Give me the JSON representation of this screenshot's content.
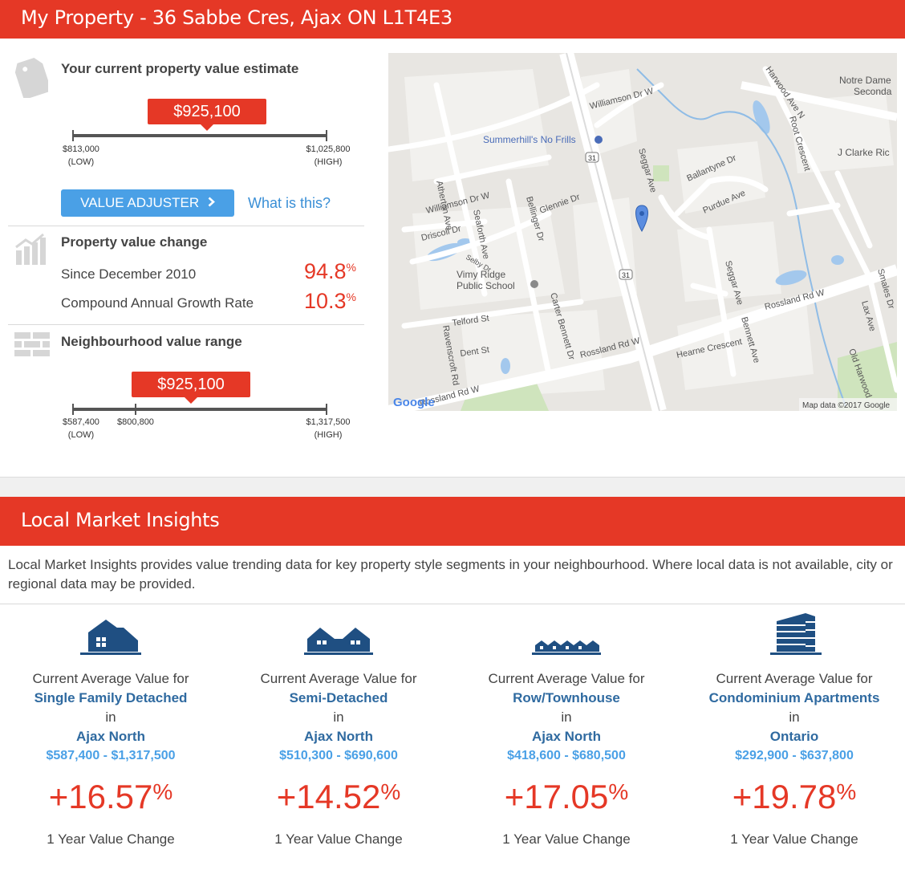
{
  "header": {
    "title": "My Property - 36 Sabbe Cres, Ajax ON L1T4E3"
  },
  "estimate": {
    "title": "Your current property value estimate",
    "value": "$925,100",
    "low": "$813,000",
    "high": "$1,025,800",
    "low_tag": "(LOW)",
    "high_tag": "(HIGH)",
    "adjuster_button": "VALUE ADJUSTER",
    "what_link": "What is this?"
  },
  "change": {
    "title": "Property value change",
    "since_label": "Since December 2010",
    "since_value": "94.8",
    "cagr_label": "Compound Annual Growth Rate",
    "cagr_value": "10.3",
    "percent_sign": "%"
  },
  "neighbourhood": {
    "title": "Neighbourhood value range",
    "value": "$925,100",
    "low": "$587,400",
    "mid": "$800,800",
    "high": "$1,317,500",
    "low_tag": "(LOW)",
    "high_tag": "(HIGH)"
  },
  "map": {
    "labels": {
      "williamson_e": "Williamson Dr W",
      "williamson_w": "Williamson Dr W",
      "rossland_e": "Rossland Rd W",
      "rossland_w": "Rossland Rd W",
      "rossland_far": "Rossland Rd W",
      "nofrills": "Summerhill's No Frills",
      "vimy1": "Vimy Ridge",
      "vimy2": "Public School",
      "notre1": "Notre Dame",
      "notre2": "Seconda",
      "jclarke": "J Clarke Ric",
      "atherton": "Atherton Ave",
      "seggar": "Seggar Ave",
      "seggar2": "Seggar Ave",
      "bennett": "Bennett Ave",
      "harwood": "Harwood Ave N",
      "telford": "Telford St",
      "dent": "Dent St",
      "ravenscroft": "Ravenscroft Rd",
      "carter": "Carter Bennett Dr",
      "bellinger": "Bellinger Dr",
      "glennie": "Glennie Dr",
      "purdue": "Purdue Ave",
      "ballantyne": "Ballantyne Dr",
      "hearne": "Hearne Crescent",
      "root": "Root Crescent",
      "smales": "Smales Dr",
      "lax": "Lax Ave",
      "oldharwood": "Old Harwood",
      "selby": "Selby Dr",
      "seaforth": "Seaforth Ave",
      "driscoll": "Driscoll Dr",
      "hwy": "31",
      "google": "Google",
      "credit": "Map data ©2017 Google"
    }
  },
  "lmi": {
    "title": "Local Market Insights",
    "intro": "Local Market Insights provides value trending data for key property style segments in your neighbourhood. Where local data is not available, city or regional data may be provided.",
    "columns": [
      {
        "prefix": "Current Average Value for",
        "type": "Single Family Detached",
        "in": "in",
        "area": "Ajax North",
        "range": "$587,400 - $1,317,500",
        "change": "+16.57",
        "pct": "%",
        "footer": "1 Year Value Change",
        "icon": "detached-house-icon"
      },
      {
        "prefix": "Current Average Value for",
        "type": "Semi-Detached",
        "in": "in",
        "area": "Ajax North",
        "range": "$510,300 - $690,600",
        "change": "+14.52",
        "pct": "%",
        "footer": "1 Year Value Change",
        "icon": "semi-detached-icon"
      },
      {
        "prefix": "Current Average Value for",
        "type": "Row/Townhouse",
        "in": "in",
        "area": "Ajax North",
        "range": "$418,600 - $680,500",
        "change": "+17.05",
        "pct": "%",
        "footer": "1 Year Value Change",
        "icon": "townhouse-icon"
      },
      {
        "prefix": "Current Average Value for",
        "type": "Condominium Apartments",
        "in": "in",
        "area": "Ontario",
        "range": "$292,900 - $637,800",
        "change": "+19.78",
        "pct": "%",
        "footer": "1 Year Value Change",
        "icon": "condo-building-icon"
      }
    ]
  },
  "colors": {
    "accent": "#e53826",
    "link": "#3a8fd6",
    "navy": "#1f4f82"
  }
}
